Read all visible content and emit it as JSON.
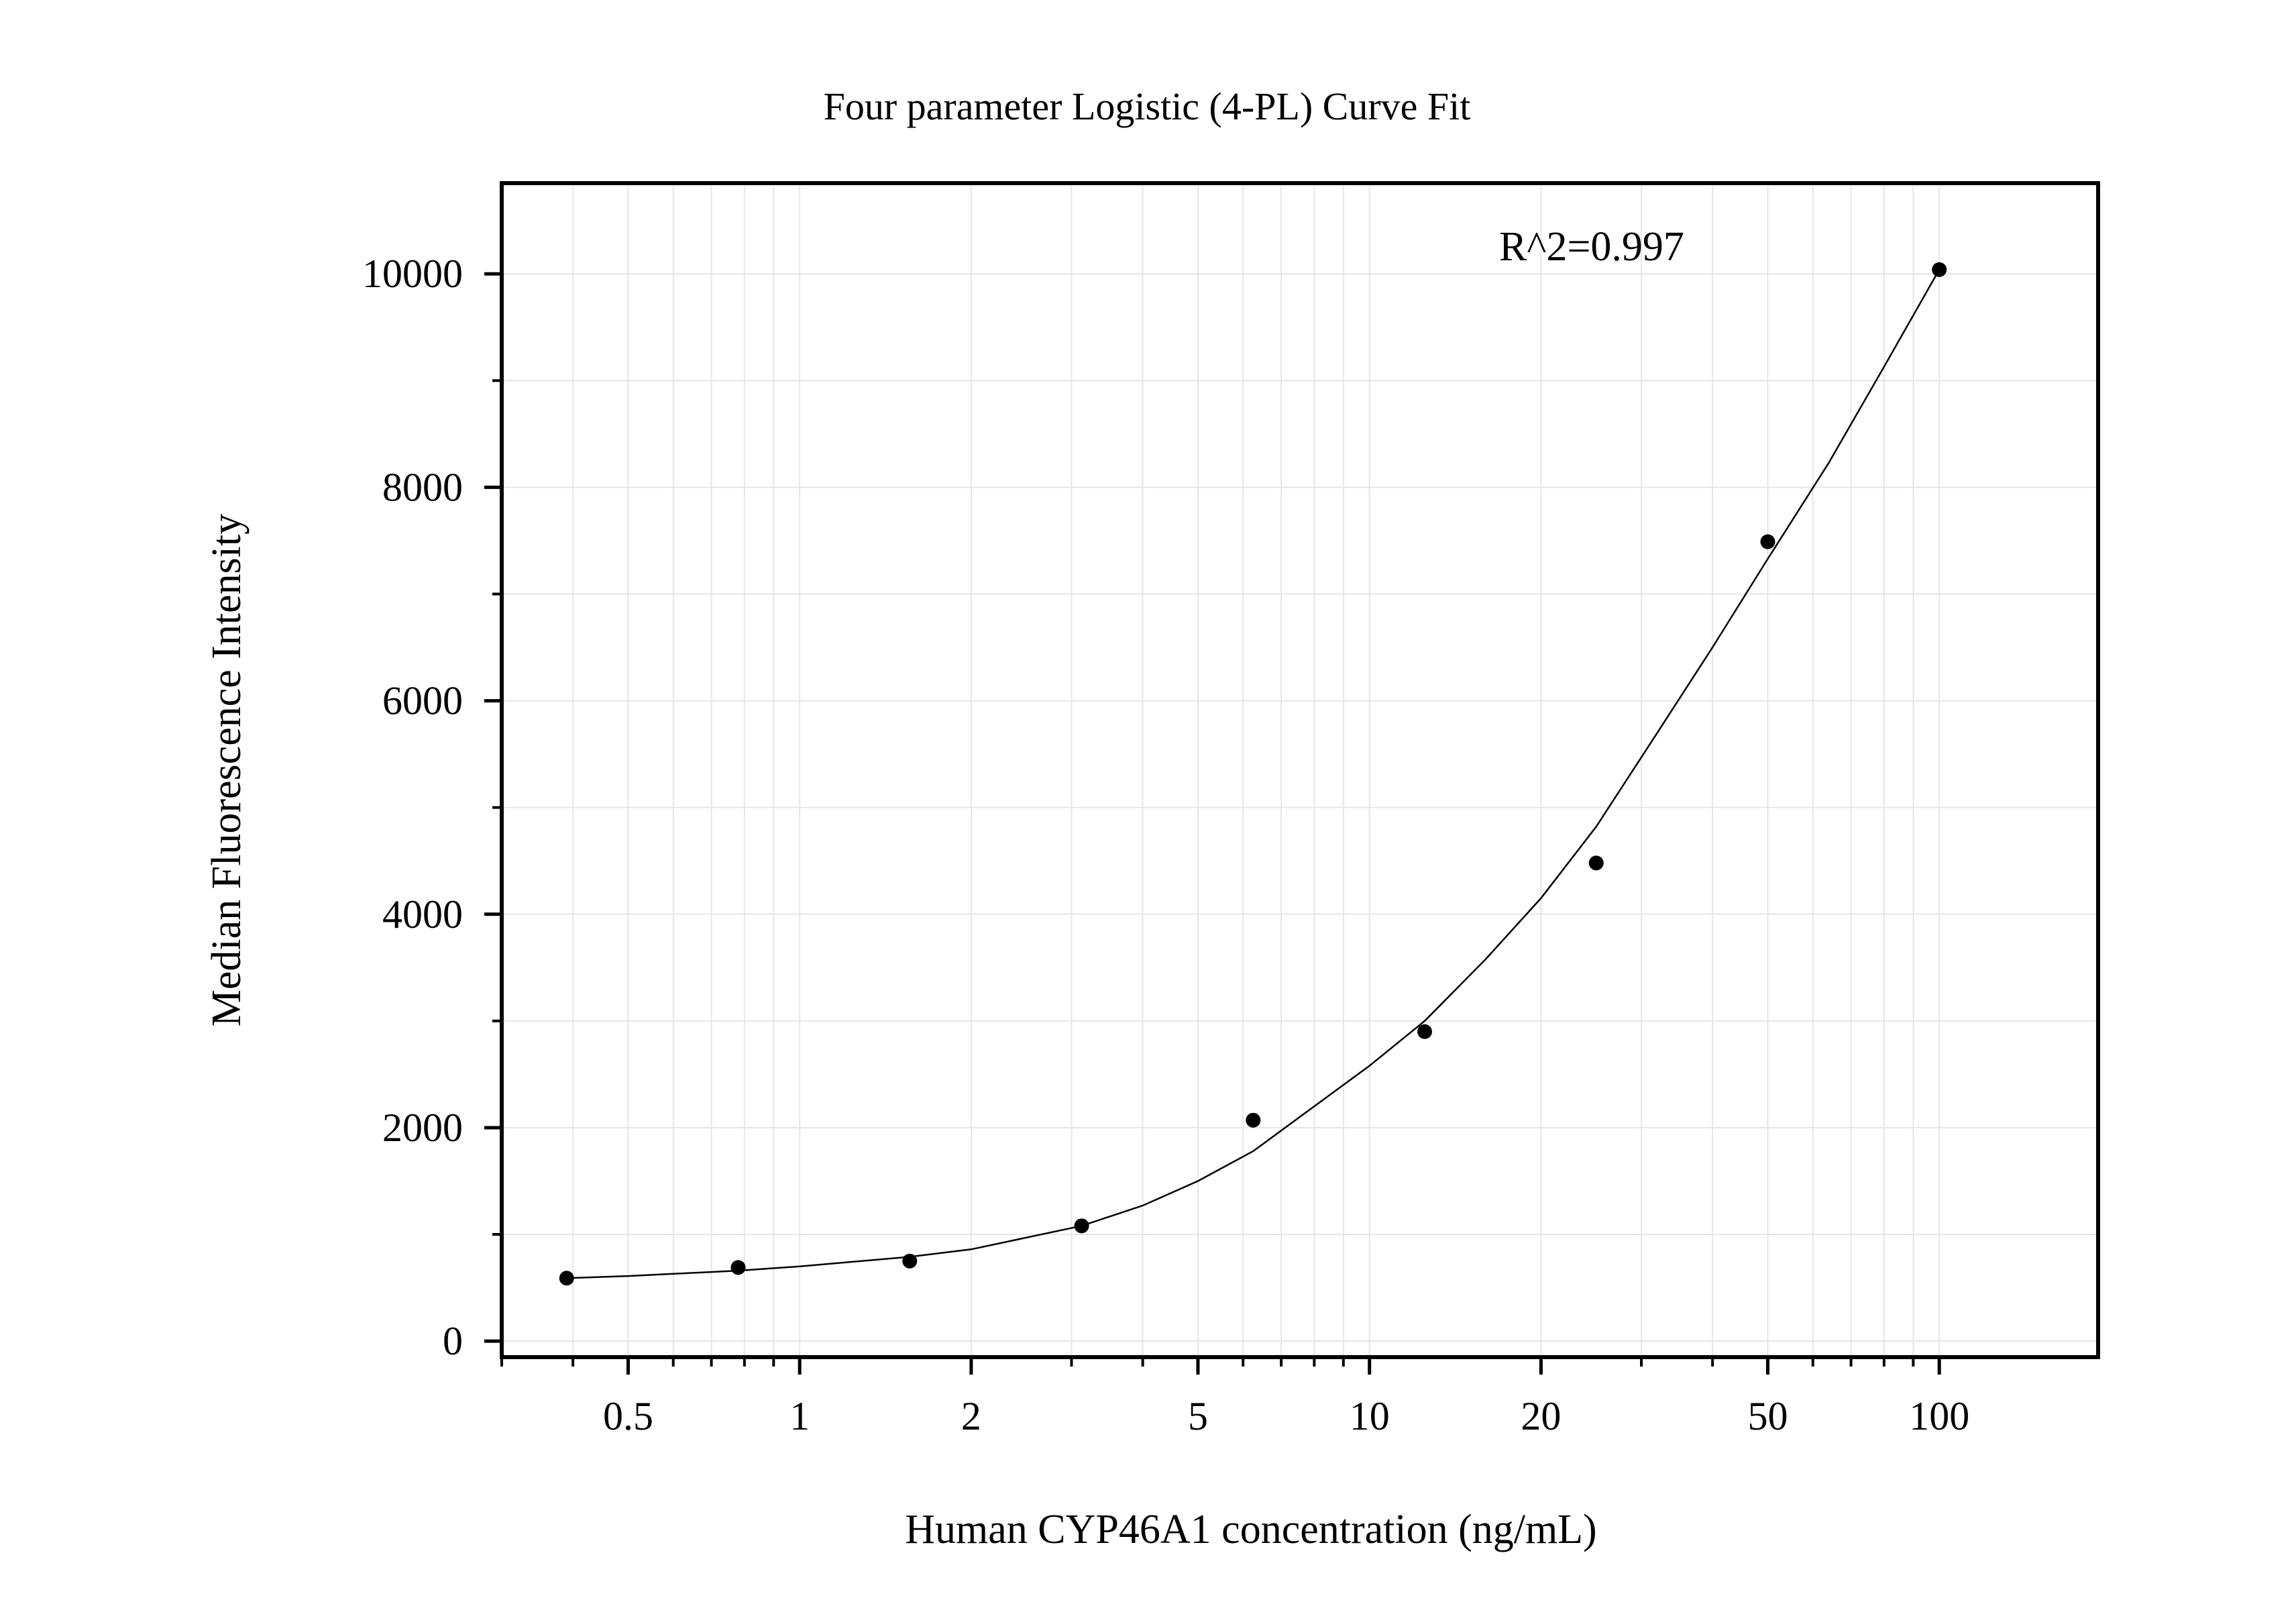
{
  "chart_data": {
    "type": "scatter",
    "title": "Four parameter Logistic (4-PL) Curve Fit",
    "xlabel": "Human CYP46A1 concentration (ng/mL)",
    "ylabel": "Median Fluorescence Intensity",
    "x_scale": "log",
    "xlim": [
      0.3,
      190
    ],
    "ylim": [
      -150,
      10850
    ],
    "x_ticks": [
      0.5,
      1,
      2,
      5,
      10,
      20,
      50,
      100
    ],
    "x_tick_labels": [
      "0.5",
      "1",
      "2",
      "5",
      "10",
      "20",
      "50",
      "100"
    ],
    "y_ticks": [
      0,
      2000,
      4000,
      6000,
      8000,
      10000
    ],
    "y_tick_labels": [
      "0",
      "2000",
      "4000",
      "6000",
      "8000",
      "10000"
    ],
    "grid": true,
    "points": {
      "x": [
        0.39,
        0.78,
        1.56,
        3.125,
        6.25,
        12.5,
        25,
        50,
        100
      ],
      "y": [
        590,
        690,
        750,
        1080,
        2070,
        2900,
        4480,
        7490,
        10040
      ]
    },
    "fit_curve": [
      [
        0.39,
        590
      ],
      [
        0.5,
        610
      ],
      [
        0.78,
        660
      ],
      [
        1,
        700
      ],
      [
        1.56,
        790
      ],
      [
        2,
        860
      ],
      [
        3.125,
        1080
      ],
      [
        4,
        1270
      ],
      [
        5,
        1500
      ],
      [
        6.25,
        1780
      ],
      [
        8,
        2200
      ],
      [
        10,
        2580
      ],
      [
        12.5,
        3000
      ],
      [
        16,
        3580
      ],
      [
        20,
        4150
      ],
      [
        25,
        4820
      ],
      [
        32,
        5700
      ],
      [
        40,
        6500
      ],
      [
        50,
        7330
      ],
      [
        64,
        8230
      ],
      [
        80,
        9130
      ],
      [
        100,
        10040
      ]
    ],
    "annotations": [
      {
        "text": "R^2=0.997",
        "position": "top-right"
      }
    ],
    "colors": {
      "points": "#000000",
      "curve": "#000000",
      "grid": "#e6e6e6",
      "frame": "#000000"
    }
  }
}
